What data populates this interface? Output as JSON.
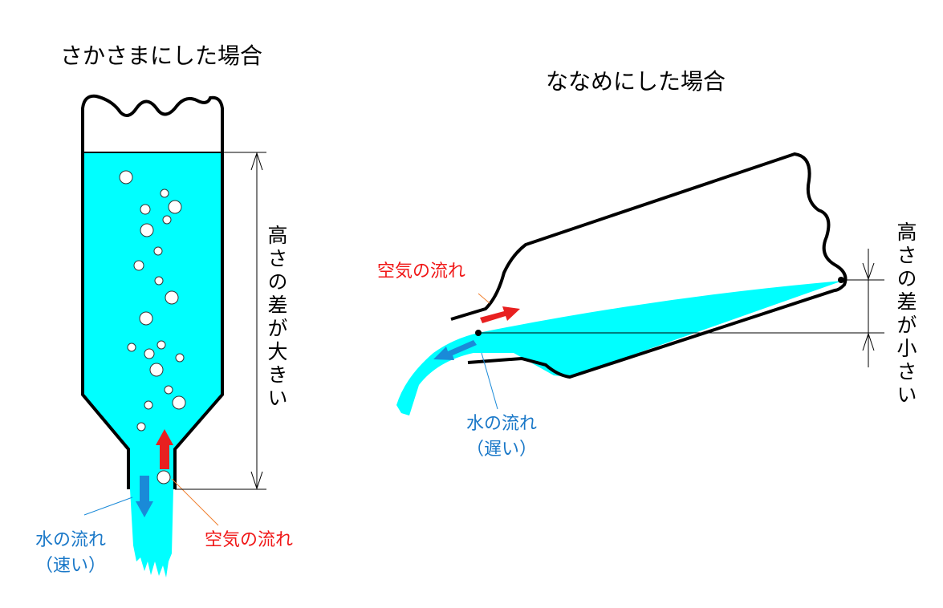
{
  "left": {
    "title": "さかさまにした場合",
    "height_label": "高さの差が大きい",
    "air_label": "空気の流れ",
    "water_label": "水の流れ",
    "water_note": "（速い）"
  },
  "right": {
    "title": "ななめにした場合",
    "height_label": "高さの差が小さい",
    "air_label": "空気の流れ",
    "water_label": "水の流れ",
    "water_note": "（遅い）"
  },
  "colors": {
    "water": "#00ffff",
    "air_arrow": "#e82020",
    "water_arrow": "#1a8ad8",
    "outline": "#000000"
  }
}
